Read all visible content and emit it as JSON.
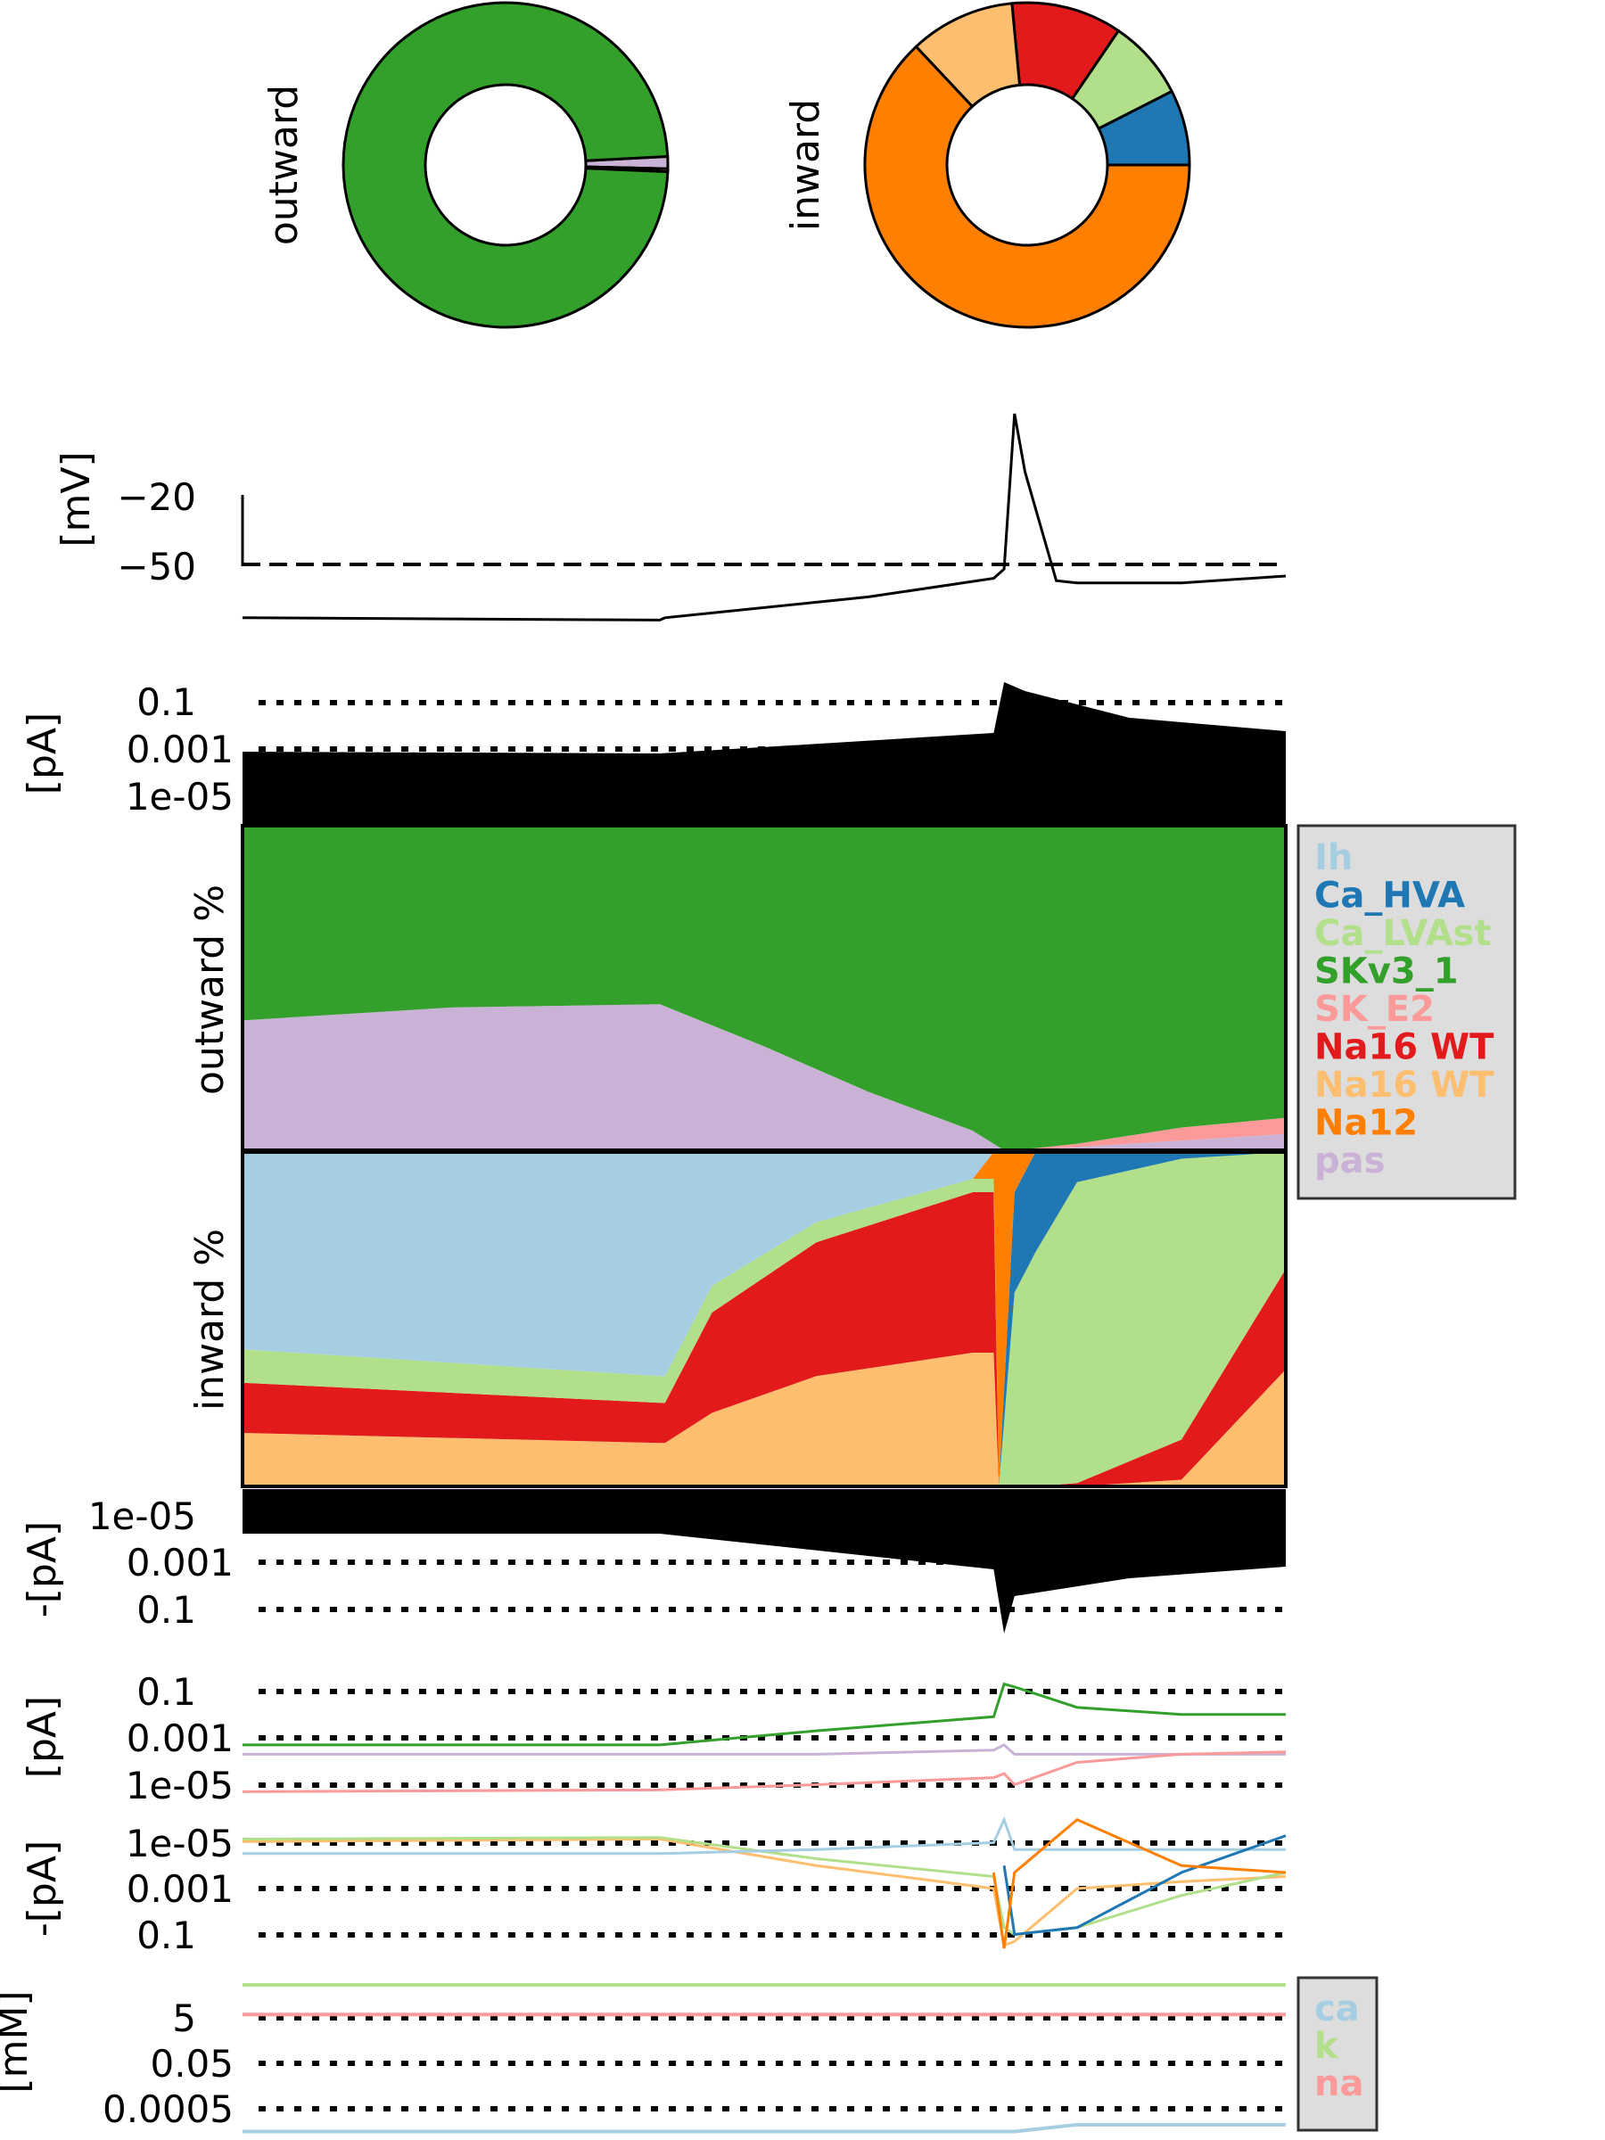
{
  "colors": {
    "Ih": "#a6cee3",
    "Ca_HVA": "#1f78b4",
    "Ca_LVAst": "#b2df8a",
    "SKv3_1": "#33a02c",
    "SK_E2": "#fb9a99",
    "Na16_WT_red": "#e31a1c",
    "Na16_WT_orange": "#fdbf6f",
    "Na12": "#ff7f00",
    "pas": "#cab2d6",
    "ion_ca": "#a6cee3",
    "ion_k": "#b2df8a",
    "ion_na": "#fb9a99"
  },
  "chart_data": [
    {
      "type": "pie",
      "panel": "outward donut",
      "ylabel": "outward",
      "slices": [
        {
          "name": "SKv3_1",
          "value": 98.5
        },
        {
          "name": "SK_E2",
          "value": 0.3
        },
        {
          "name": "pas",
          "value": 1.2
        }
      ]
    },
    {
      "type": "pie",
      "panel": "inward donut",
      "ylabel": "inward",
      "slices": [
        {
          "name": "Ca_HVA",
          "value": 7.5
        },
        {
          "name": "Ca_LVAst",
          "value": 8
        },
        {
          "name": "Na16 WT (red)",
          "value": 11
        },
        {
          "name": "Na16 WT (orange)",
          "value": 10.5
        },
        {
          "name": "Na12",
          "value": 63
        }
      ]
    },
    {
      "type": "line",
      "panel": "voltage",
      "ylabel": "[mV]",
      "yticks": [
        "−20",
        "−50"
      ],
      "threshold": -50,
      "x": [
        0,
        20,
        40,
        40.5,
        60,
        72,
        73,
        74,
        75,
        78,
        80,
        90,
        100
      ],
      "values": [
        -73,
        -73.5,
        -74,
        -73,
        -64,
        -56,
        -52,
        15,
        -10,
        -57,
        -58,
        -58,
        -55
      ]
    },
    {
      "type": "area",
      "panel": "total outward current (log)",
      "ylabel": "[pA]",
      "yticks": [
        "0.1",
        "0.001",
        "1e-05"
      ]
    },
    {
      "type": "area",
      "panel": "outward %",
      "ylabel": "outward %",
      "legend": [
        "Ih",
        "Ca_HVA",
        "Ca_LVAst",
        "SKv3_1",
        "SK_E2",
        "Na16 WT",
        "Na16 WT",
        "Na12",
        "pas"
      ],
      "legend_colors": [
        "#a6cee3",
        "#1f78b4",
        "#b2df8a",
        "#33a02c",
        "#fb9a99",
        "#e31a1c",
        "#fdbf6f",
        "#ff7f00",
        "#cab2d6"
      ],
      "x": [
        0,
        20,
        40,
        50,
        60,
        70,
        72,
        73,
        74,
        80,
        90,
        100
      ],
      "series": [
        {
          "name": "pas",
          "values": [
            40,
            44,
            45,
            32,
            18,
            6,
            2,
            0,
            0,
            1,
            3,
            5
          ]
        },
        {
          "name": "SK_E2",
          "values": [
            0,
            0,
            0,
            0,
            0,
            0,
            0,
            0,
            0,
            1,
            4,
            5
          ]
        },
        {
          "name": "SKv3_1",
          "values": [
            60,
            56,
            55,
            68,
            82,
            94,
            98,
            100,
            100,
            98,
            93,
            90
          ]
        }
      ]
    },
    {
      "type": "area",
      "panel": "inward %",
      "ylabel": "inward %",
      "x": [
        0,
        40,
        40.5,
        45,
        55,
        70,
        72,
        72.5,
        74,
        76,
        80,
        90,
        100
      ],
      "series": [
        {
          "name": "Na16 WT (orange)",
          "values": [
            16,
            13,
            13,
            22,
            33,
            40,
            40,
            0,
            0,
            0,
            0,
            2,
            35
          ]
        },
        {
          "name": "Na16 WT (red)",
          "values": [
            15,
            12,
            12,
            30,
            40,
            48,
            48,
            0,
            0,
            0,
            1,
            12,
            30
          ]
        },
        {
          "name": "Ca_LVAst",
          "values": [
            10,
            8,
            8,
            8,
            6,
            4,
            4,
            0,
            58,
            70,
            90,
            84,
            35
          ]
        },
        {
          "name": "Ca_HVA",
          "values": [
            0,
            0,
            0,
            0,
            0,
            0,
            0,
            0,
            30,
            30,
            9,
            2,
            0
          ]
        },
        {
          "name": "Na12",
          "values": [
            0,
            0,
            0,
            0,
            0,
            0,
            8,
            100,
            12,
            0,
            0,
            0,
            0
          ]
        },
        {
          "name": "Ih",
          "values": [
            59,
            67,
            67,
            40,
            21,
            8,
            0,
            0,
            0,
            0,
            0,
            0,
            0
          ]
        }
      ]
    },
    {
      "type": "area",
      "panel": "total inward current (log)",
      "ylabel": "-[pA]",
      "yticks": [
        "1e-05",
        "0.001",
        "0.1"
      ]
    },
    {
      "type": "line",
      "panel": "outward currents (log)",
      "ylabel": "[pA]",
      "yticks": [
        "0.1",
        "0.001",
        "1e-05"
      ],
      "x": [
        0,
        40,
        55,
        72,
        73,
        74,
        80,
        90,
        100
      ],
      "series": [
        {
          "name": "SKv3_1",
          "values": [
            0.0005,
            0.0005,
            0.002,
            0.008,
            0.2,
            0.15,
            0.02,
            0.01,
            0.01
          ]
        },
        {
          "name": "pas",
          "values": [
            0.0002,
            0.0002,
            0.0002,
            0.0003,
            0.0005,
            0.0002,
            0.0002,
            0.0002,
            0.0002
          ]
        },
        {
          "name": "SK_E2",
          "values": [
            5e-06,
            6e-06,
            1e-05,
            2e-05,
            3e-05,
            1e-05,
            9e-05,
            0.0002,
            0.00025
          ]
        }
      ]
    },
    {
      "type": "line",
      "panel": "inward currents (log)",
      "ylabel": "-[pA]",
      "yticks": [
        "1e-05",
        "0.001",
        "0.1"
      ],
      "x": [
        0,
        40,
        55,
        72,
        73,
        74,
        80,
        90,
        100
      ],
      "series": [
        {
          "name": "Na16 WT (orange)",
          "values": [
            9e-06,
            7e-06,
            0.0001,
            0.001,
            0.3,
            0.2,
            0.001,
            0.0005,
            0.0003
          ]
        },
        {
          "name": "Ca_LVAst",
          "values": [
            7e-06,
            6e-06,
            5e-05,
            0.0003,
            0.05,
            0.1,
            0.05,
            0.002,
            0.0002
          ]
        },
        {
          "name": "Ih",
          "values": [
            3e-05,
            3e-05,
            2e-05,
            1e-05,
            1e-06,
            2e-05,
            2e-05,
            2e-05,
            2e-05
          ]
        },
        {
          "name": "Ca_HVA",
          "values": [
            null,
            null,
            null,
            null,
            0.0001,
            0.1,
            0.05,
            0.0002,
            5e-06
          ]
        },
        {
          "name": "Na12",
          "values": [
            null,
            null,
            null,
            0.0002,
            0.4,
            0.0002,
            1e-06,
            0.0001,
            0.0002
          ]
        }
      ]
    },
    {
      "type": "line",
      "panel": "ion concentrations (log)",
      "ylabel": "[mM]",
      "yticks": [
        "5",
        "0.05",
        "0.0005"
      ],
      "legend": [
        "ca",
        "k",
        "na"
      ],
      "x": [
        0,
        72,
        74,
        80,
        100
      ],
      "series": [
        {
          "name": "k",
          "values": [
            140,
            140,
            140,
            140,
            140
          ]
        },
        {
          "name": "na",
          "values": [
            7,
            7,
            7,
            7,
            7
          ]
        },
        {
          "name": "ca",
          "values": [
            5e-05,
            5e-05,
            5e-05,
            0.0001,
            0.0001
          ]
        }
      ]
    }
  ]
}
